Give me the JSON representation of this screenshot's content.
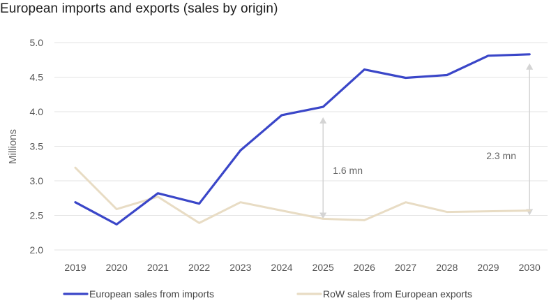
{
  "chart_data": {
    "type": "line",
    "title": "European imports and exports (sales by origin)",
    "xlabel": "",
    "ylabel": "Millions",
    "x": [
      "2019",
      "2020",
      "2021",
      "2022",
      "2023",
      "2024",
      "2025",
      "2026",
      "2027",
      "2028",
      "2029",
      "2030"
    ],
    "ylim": [
      2.0,
      5.0
    ],
    "yticks": [
      "2.0",
      "2.5",
      "3.0",
      "3.5",
      "4.0",
      "4.5",
      "5.0"
    ],
    "grid": "horizontal",
    "legend_position": "bottom",
    "series": [
      {
        "name": "European sales from imports",
        "color": "#3a46c8",
        "values": [
          2.69,
          2.37,
          2.82,
          2.67,
          3.44,
          3.95,
          4.07,
          4.61,
          4.49,
          4.53,
          4.81,
          4.83
        ]
      },
      {
        "name": "RoW sales from European exports",
        "color": "#e8dcc4",
        "values": [
          3.19,
          2.59,
          2.77,
          2.39,
          2.69,
          2.57,
          2.45,
          2.43,
          2.69,
          2.55,
          2.56,
          2.57
        ]
      }
    ],
    "annotations": [
      {
        "text": "1.6 mn",
        "x": "2025",
        "from": 2.45,
        "to": 3.92
      },
      {
        "text": "2.3 mn",
        "x": "2030",
        "from": 2.5,
        "to": 4.7
      }
    ]
  },
  "colors": {
    "grid": "#e3e3e3",
    "arrow": "#d4d4d4"
  }
}
